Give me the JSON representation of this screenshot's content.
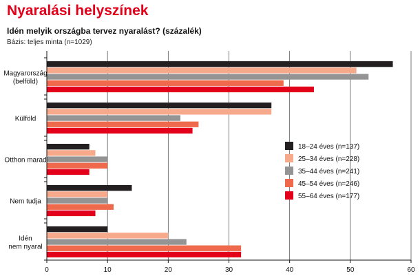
{
  "title": "Nyaralási helyszínek",
  "subtitle": "Idén melyik országba tervez nyaralást? (százalék)",
  "note": "Bázis: teljes minta (n=1029)",
  "chart_data": {
    "type": "bar",
    "orientation": "horizontal",
    "categories": [
      [
        "Magyarország",
        "(belföld)"
      ],
      [
        "Külföld"
      ],
      [
        "Otthon marad"
      ],
      [
        "Nem tudja"
      ],
      [
        "Idén",
        "nem nyaral"
      ]
    ],
    "series": [
      {
        "name": "18–24 éves (n=137)",
        "color": "#231f20",
        "values": [
          57,
          37,
          7,
          14,
          10
        ]
      },
      {
        "name": "25–34 éves (n=228)",
        "color": "#f7a98b",
        "values": [
          51,
          37,
          8,
          10,
          20
        ]
      },
      {
        "name": "35–44 éves (n=241)",
        "color": "#949494",
        "values": [
          53,
          22,
          10,
          10,
          23
        ]
      },
      {
        "name": "45–54 éves (n=246)",
        "color": "#ef6a4c",
        "values": [
          39,
          25,
          10,
          11,
          32
        ]
      },
      {
        "name": "55–64 éves (n=177)",
        "color": "#e2001a",
        "values": [
          44,
          24,
          7,
          8,
          32
        ]
      }
    ],
    "xlim": [
      0,
      60
    ],
    "xticks": [
      0,
      10,
      20,
      30,
      40,
      50,
      60
    ],
    "grid": true,
    "legend_position": "right-center"
  }
}
